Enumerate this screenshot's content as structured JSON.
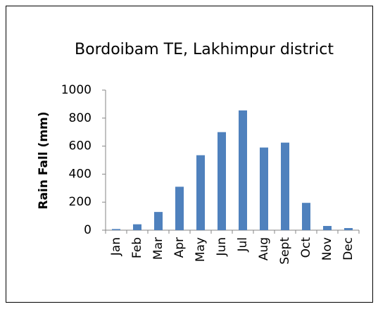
{
  "chart_data": {
    "type": "bar",
    "title": "Bordoibam  TE, Lakhimpur district",
    "y_label": "Rain Fall (mm)",
    "categories": [
      "Jan",
      "Feb",
      "Mar",
      "Apr",
      "May",
      "Jun",
      "Jul",
      "Aug",
      "Sept",
      "Oct",
      "Nov",
      "Dec"
    ],
    "values": [
      8,
      42,
      130,
      310,
      535,
      700,
      855,
      590,
      625,
      195,
      30,
      15
    ],
    "color": "#4f81bd",
    "ylim": [
      0,
      1000
    ],
    "yticks": [
      0,
      200,
      400,
      600,
      800,
      1000
    ],
    "grid": false
  }
}
